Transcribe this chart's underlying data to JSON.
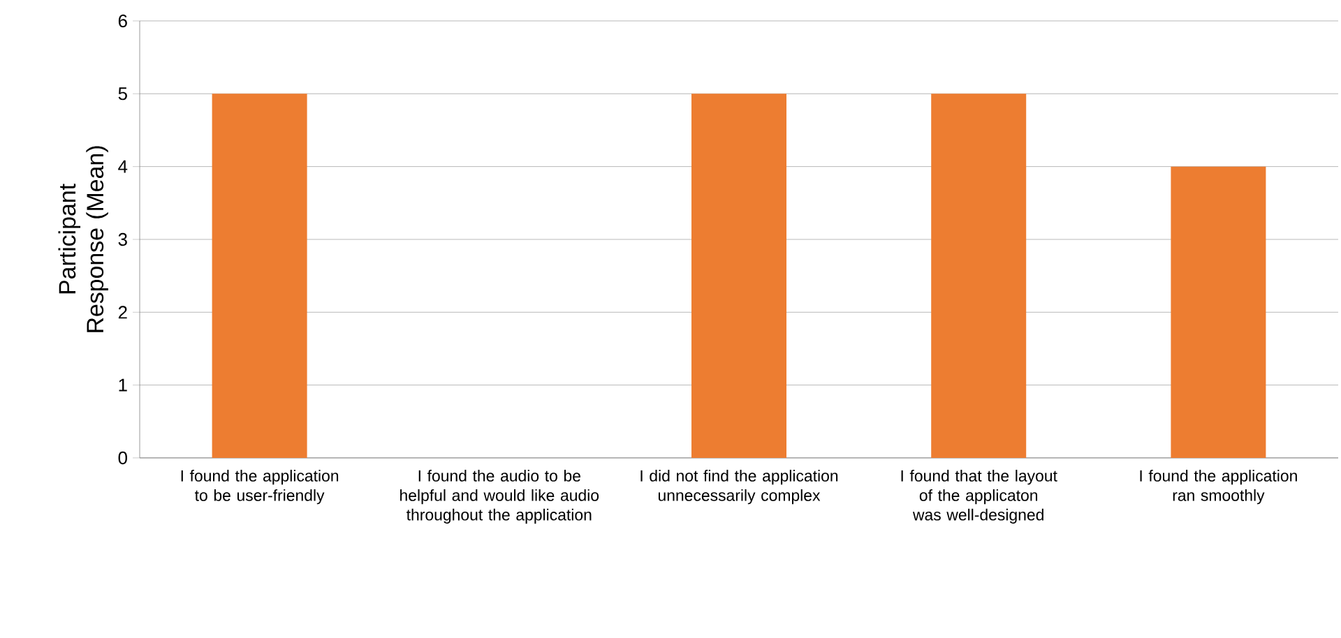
{
  "chart_data": {
    "type": "bar",
    "ylabel": "Participant Response (Mean)",
    "categories": [
      "I found the application to be user-friendly",
      "I found the audio to be helpful and would like audio throughout the application",
      "I did not find the application unnecessarily complex",
      "I found that the layout of the applicaton was well-designed",
      "I found the application ran smoothly"
    ],
    "values": [
      5,
      0,
      5,
      5,
      4
    ],
    "color": "#ed7d31",
    "ylim": [
      0,
      6
    ],
    "yticks": [
      0,
      1,
      2,
      3,
      4,
      5,
      6
    ],
    "grid": "y"
  }
}
